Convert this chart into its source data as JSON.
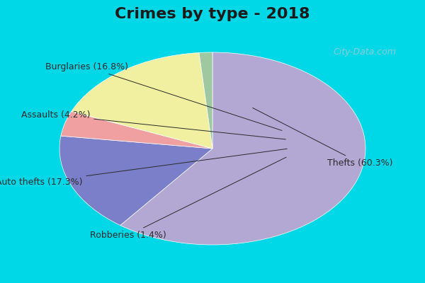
{
  "title": "Crimes by type - 2018",
  "slices": [
    {
      "label": "Thefts",
      "pct": 60.3,
      "color": "#b3a8d4"
    },
    {
      "label": "Burglaries",
      "pct": 16.8,
      "color": "#7b7ec8"
    },
    {
      "label": "Assaults",
      "pct": 4.2,
      "color": "#f0a0a0"
    },
    {
      "label": "Auto thefts",
      "pct": 17.3,
      "color": "#f0f0a0"
    },
    {
      "label": "Robberies",
      "pct": 1.4,
      "color": "#a0c8a0"
    }
  ],
  "title_fontsize": 16,
  "label_fontsize": 9,
  "background_top": "#00d8e8",
  "background_inner": "#d8ede0",
  "label_color": "#2a2a2a",
  "watermark": "City-Data.com"
}
